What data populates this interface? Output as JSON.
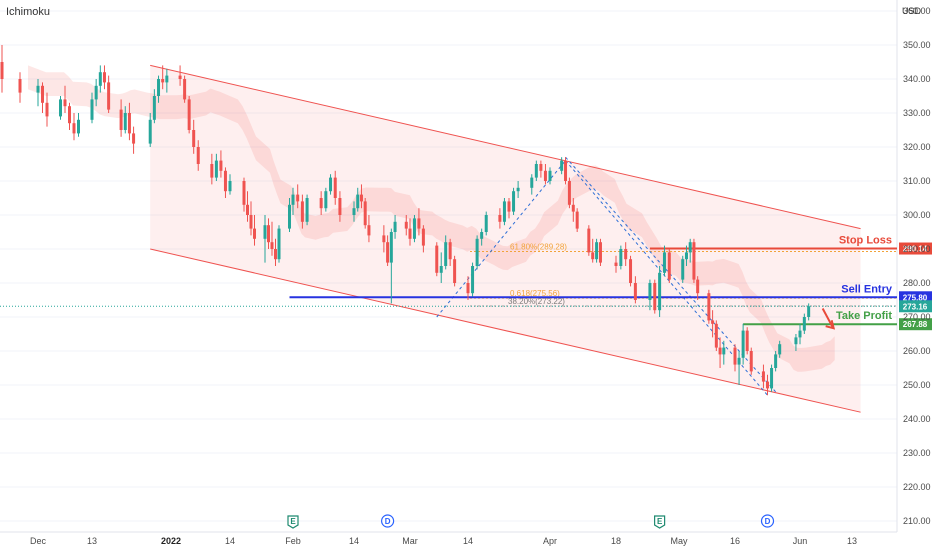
{
  "header": {
    "indicator": "Ichimoku",
    "currency": "USD"
  },
  "colors": {
    "up": "#26a69a",
    "down": "#ef5350",
    "channel": "#ef5350",
    "sell": "#2733e0",
    "stop": "#e84a3a",
    "take": "#43a047",
    "fib": "#f2a33a",
    "grid": "#f0f3fa"
  },
  "chart_data": {
    "type": "candlestick",
    "title": "",
    "ylim": [
      205,
      363
    ],
    "y_ticks": [
      210,
      220,
      230,
      240,
      250,
      260,
      270,
      280,
      290,
      300,
      310,
      320,
      330,
      340,
      350,
      360
    ],
    "x_labels": [
      "Dec",
      "13",
      "2022",
      "14",
      "Feb",
      "14",
      "Mar",
      "14",
      "Apr",
      "18",
      "May",
      "16",
      "Jun",
      "13"
    ],
    "x_label_bold": [
      "2022"
    ],
    "annotations": [
      {
        "label": "Stop Loss",
        "value": 290.14,
        "tag": "290.14"
      },
      {
        "label": "Sell Entry",
        "value": 275.8,
        "tag": "275.80"
      },
      {
        "label": "Take Profit",
        "value": 267.88,
        "tag": "267.88"
      }
    ],
    "current_price": {
      "value": 273.16,
      "tag": "273.16"
    },
    "fib_levels": [
      {
        "label": "61.80%(289.28)",
        "value": 289.28
      },
      {
        "label": "0.618(275.56)",
        "value": 275.56
      },
      {
        "label": "38.20%(273.22)",
        "value": 273.22
      }
    ],
    "events": [
      {
        "label": "E",
        "date": "Feb 1"
      },
      {
        "label": "D",
        "date": "Feb 23"
      },
      {
        "label": "E",
        "date": "Apr 27"
      },
      {
        "label": "D",
        "date": "May 24"
      }
    ],
    "channel": {
      "upper": [
        [
          "Dec 27",
          344
        ],
        [
          "Jun 15",
          296
        ]
      ],
      "lower": [
        [
          "Dec 27",
          290
        ],
        [
          "Jun 15",
          242
        ]
      ]
    },
    "candles": [
      {
        "d": "Nov 29",
        "o": 345,
        "h": 350,
        "l": 336,
        "c": 340
      },
      {
        "d": "Nov 30",
        "o": 340,
        "h": 342,
        "l": 333,
        "c": 336
      },
      {
        "d": "Dec 1",
        "o": 336,
        "h": 340,
        "l": 332,
        "c": 338
      },
      {
        "d": "Dec 2",
        "o": 338,
        "h": 339,
        "l": 330,
        "c": 333
      },
      {
        "d": "Dec 3",
        "o": 333,
        "h": 336,
        "l": 326,
        "c": 329
      },
      {
        "d": "Dec 6",
        "o": 329,
        "h": 335,
        "l": 328,
        "c": 334
      },
      {
        "d": "Dec 7",
        "o": 334,
        "h": 338,
        "l": 330,
        "c": 332
      },
      {
        "d": "Dec 8",
        "o": 332,
        "h": 333,
        "l": 325,
        "c": 327
      },
      {
        "d": "Dec 9",
        "o": 327,
        "h": 330,
        "l": 322,
        "c": 324
      },
      {
        "d": "Dec 10",
        "o": 324,
        "h": 330,
        "l": 323,
        "c": 328
      },
      {
        "d": "Dec 13",
        "o": 328,
        "h": 336,
        "l": 327,
        "c": 334
      },
      {
        "d": "Dec 14",
        "o": 334,
        "h": 340,
        "l": 332,
        "c": 338
      },
      {
        "d": "Dec 15",
        "o": 338,
        "h": 344,
        "l": 336,
        "c": 342
      },
      {
        "d": "Dec 16",
        "o": 342,
        "h": 344,
        "l": 337,
        "c": 339
      },
      {
        "d": "Dec 17",
        "o": 339,
        "h": 341,
        "l": 330,
        "c": 331
      },
      {
        "d": "Dec 20",
        "o": 331,
        "h": 334,
        "l": 323,
        "c": 325
      },
      {
        "d": "Dec 21",
        "o": 325,
        "h": 332,
        "l": 324,
        "c": 330
      },
      {
        "d": "Dec 22",
        "o": 330,
        "h": 333,
        "l": 322,
        "c": 324
      },
      {
        "d": "Dec 23",
        "o": 324,
        "h": 326,
        "l": 318,
        "c": 321
      },
      {
        "d": "Dec 27",
        "o": 321,
        "h": 330,
        "l": 320,
        "c": 328
      },
      {
        "d": "Dec 28",
        "o": 328,
        "h": 337,
        "l": 327,
        "c": 335
      },
      {
        "d": "Dec 29",
        "o": 335,
        "h": 341,
        "l": 333,
        "c": 340
      },
      {
        "d": "Dec 30",
        "o": 340,
        "h": 344,
        "l": 337,
        "c": 339
      },
      {
        "d": "Dec 31",
        "o": 339,
        "h": 343,
        "l": 336,
        "c": 341
      },
      {
        "d": "Jan 3",
        "o": 341,
        "h": 344,
        "l": 338,
        "c": 340
      },
      {
        "d": "Jan 4",
        "o": 340,
        "h": 341,
        "l": 333,
        "c": 334
      },
      {
        "d": "Jan 5",
        "o": 334,
        "h": 335,
        "l": 324,
        "c": 325
      },
      {
        "d": "Jan 6",
        "o": 325,
        "h": 328,
        "l": 318,
        "c": 320
      },
      {
        "d": "Jan 7",
        "o": 320,
        "h": 322,
        "l": 313,
        "c": 315
      },
      {
        "d": "Jan 10",
        "o": 315,
        "h": 318,
        "l": 309,
        "c": 311
      },
      {
        "d": "Jan 11",
        "o": 311,
        "h": 318,
        "l": 310,
        "c": 316
      },
      {
        "d": "Jan 12",
        "o": 316,
        "h": 319,
        "l": 311,
        "c": 313
      },
      {
        "d": "Jan 13",
        "o": 313,
        "h": 314,
        "l": 305,
        "c": 307
      },
      {
        "d": "Jan 14",
        "o": 307,
        "h": 312,
        "l": 306,
        "c": 310
      },
      {
        "d": "Jan 18",
        "o": 310,
        "h": 311,
        "l": 301,
        "c": 303
      },
      {
        "d": "Jan 19",
        "o": 303,
        "h": 307,
        "l": 298,
        "c": 300
      },
      {
        "d": "Jan 20",
        "o": 300,
        "h": 304,
        "l": 294,
        "c": 296
      },
      {
        "d": "Jan 21",
        "o": 296,
        "h": 300,
        "l": 291,
        "c": 293
      },
      {
        "d": "Jan 24",
        "o": 293,
        "h": 300,
        "l": 286,
        "c": 297
      },
      {
        "d": "Jan 25",
        "o": 297,
        "h": 299,
        "l": 290,
        "c": 292
      },
      {
        "d": "Jan 26",
        "o": 292,
        "h": 298,
        "l": 288,
        "c": 290
      },
      {
        "d": "Jan 27",
        "o": 290,
        "h": 293,
        "l": 285,
        "c": 287
      },
      {
        "d": "Jan 28",
        "o": 287,
        "h": 297,
        "l": 286,
        "c": 296
      },
      {
        "d": "Jan 31",
        "o": 296,
        "h": 305,
        "l": 295,
        "c": 303
      },
      {
        "d": "Feb 1",
        "o": 303,
        "h": 308,
        "l": 300,
        "c": 306
      },
      {
        "d": "Feb 2",
        "o": 306,
        "h": 309,
        "l": 302,
        "c": 304
      },
      {
        "d": "Feb 3",
        "o": 304,
        "h": 306,
        "l": 296,
        "c": 298
      },
      {
        "d": "Feb 4",
        "o": 298,
        "h": 306,
        "l": 297,
        "c": 305
      },
      {
        "d": "Feb 7",
        "o": 305,
        "h": 307,
        "l": 300,
        "c": 302
      },
      {
        "d": "Feb 8",
        "o": 302,
        "h": 308,
        "l": 301,
        "c": 307
      },
      {
        "d": "Feb 9",
        "o": 307,
        "h": 312,
        "l": 306,
        "c": 311
      },
      {
        "d": "Feb 10",
        "o": 311,
        "h": 313,
        "l": 303,
        "c": 305
      },
      {
        "d": "Feb 11",
        "o": 305,
        "h": 307,
        "l": 298,
        "c": 300
      },
      {
        "d": "Feb 14",
        "o": 300,
        "h": 304,
        "l": 298,
        "c": 302
      },
      {
        "d": "Feb 15",
        "o": 302,
        "h": 308,
        "l": 301,
        "c": 306
      },
      {
        "d": "Feb 16",
        "o": 306,
        "h": 309,
        "l": 302,
        "c": 304
      },
      {
        "d": "Feb 17",
        "o": 304,
        "h": 305,
        "l": 296,
        "c": 297
      },
      {
        "d": "Feb 18",
        "o": 297,
        "h": 300,
        "l": 292,
        "c": 294
      },
      {
        "d": "Feb 22",
        "o": 294,
        "h": 297,
        "l": 289,
        "c": 292
      },
      {
        "d": "Feb 23",
        "o": 292,
        "h": 294,
        "l": 285,
        "c": 286
      },
      {
        "d": "Feb 24",
        "o": 286,
        "h": 296,
        "l": 274,
        "c": 295
      },
      {
        "d": "Feb 25",
        "o": 295,
        "h": 300,
        "l": 293,
        "c": 298
      },
      {
        "d": "Feb 28",
        "o": 298,
        "h": 300,
        "l": 294,
        "c": 296
      },
      {
        "d": "Mar 1",
        "o": 296,
        "h": 299,
        "l": 291,
        "c": 293
      },
      {
        "d": "Mar 2",
        "o": 293,
        "h": 300,
        "l": 292,
        "c": 299
      },
      {
        "d": "Mar 3",
        "o": 299,
        "h": 302,
        "l": 294,
        "c": 296
      },
      {
        "d": "Mar 4",
        "o": 296,
        "h": 297,
        "l": 289,
        "c": 291
      },
      {
        "d": "Mar 7",
        "o": 291,
        "h": 292,
        "l": 282,
        "c": 283
      },
      {
        "d": "Mar 8",
        "o": 283,
        "h": 289,
        "l": 280,
        "c": 285
      },
      {
        "d": "Mar 9",
        "o": 285,
        "h": 294,
        "l": 284,
        "c": 292
      },
      {
        "d": "Mar 10",
        "o": 292,
        "h": 293,
        "l": 285,
        "c": 287
      },
      {
        "d": "Mar 11",
        "o": 287,
        "h": 288,
        "l": 279,
        "c": 280
      },
      {
        "d": "Mar 14",
        "o": 280,
        "h": 282,
        "l": 275,
        "c": 277
      },
      {
        "d": "Mar 15",
        "o": 277,
        "h": 286,
        "l": 276,
        "c": 285
      },
      {
        "d": "Mar 16",
        "o": 285,
        "h": 294,
        "l": 284,
        "c": 293
      },
      {
        "d": "Mar 17",
        "o": 293,
        "h": 296,
        "l": 291,
        "c": 295
      },
      {
        "d": "Mar 18",
        "o": 295,
        "h": 301,
        "l": 294,
        "c": 300
      },
      {
        "d": "Mar 21",
        "o": 300,
        "h": 302,
        "l": 296,
        "c": 298
      },
      {
        "d": "Mar 22",
        "o": 298,
        "h": 305,
        "l": 297,
        "c": 304
      },
      {
        "d": "Mar 23",
        "o": 304,
        "h": 305,
        "l": 299,
        "c": 301
      },
      {
        "d": "Mar 24",
        "o": 301,
        "h": 308,
        "l": 300,
        "c": 307
      },
      {
        "d": "Mar 25",
        "o": 307,
        "h": 310,
        "l": 305,
        "c": 308
      },
      {
        "d": "Mar 28",
        "o": 308,
        "h": 312,
        "l": 306,
        "c": 311
      },
      {
        "d": "Mar 29",
        "o": 311,
        "h": 316,
        "l": 310,
        "c": 315
      },
      {
        "d": "Mar 30",
        "o": 315,
        "h": 316,
        "l": 311,
        "c": 313
      },
      {
        "d": "Mar 31",
        "o": 313,
        "h": 315,
        "l": 309,
        "c": 310
      },
      {
        "d": "Apr 1",
        "o": 310,
        "h": 314,
        "l": 309,
        "c": 313
      },
      {
        "d": "Apr 4",
        "o": 313,
        "h": 317,
        "l": 312,
        "c": 316
      },
      {
        "d": "Apr 5",
        "o": 316,
        "h": 317,
        "l": 309,
        "c": 310
      },
      {
        "d": "Apr 6",
        "o": 310,
        "h": 311,
        "l": 302,
        "c": 303
      },
      {
        "d": "Apr 7",
        "o": 303,
        "h": 305,
        "l": 298,
        "c": 301
      },
      {
        "d": "Apr 8",
        "o": 301,
        "h": 302,
        "l": 295,
        "c": 296
      },
      {
        "d": "Apr 11",
        "o": 296,
        "h": 297,
        "l": 288,
        "c": 289
      },
      {
        "d": "Apr 12",
        "o": 289,
        "h": 293,
        "l": 286,
        "c": 287
      },
      {
        "d": "Apr 13",
        "o": 287,
        "h": 293,
        "l": 286,
        "c": 292
      },
      {
        "d": "Apr 14",
        "o": 292,
        "h": 293,
        "l": 285,
        "c": 286
      },
      {
        "d": "Apr 18",
        "o": 286,
        "h": 288,
        "l": 283,
        "c": 285
      },
      {
        "d": "Apr 19",
        "o": 285,
        "h": 291,
        "l": 284,
        "c": 290
      },
      {
        "d": "Apr 20",
        "o": 290,
        "h": 292,
        "l": 285,
        "c": 287
      },
      {
        "d": "Apr 21",
        "o": 287,
        "h": 288,
        "l": 279,
        "c": 280
      },
      {
        "d": "Apr 22",
        "o": 280,
        "h": 282,
        "l": 274,
        "c": 275
      },
      {
        "d": "Apr 25",
        "o": 275,
        "h": 281,
        "l": 272,
        "c": 280
      },
      {
        "d": "Apr 26",
        "o": 280,
        "h": 281,
        "l": 271,
        "c": 272
      },
      {
        "d": "Apr 27",
        "o": 272,
        "h": 285,
        "l": 270,
        "c": 283
      },
      {
        "d": "Apr 28",
        "o": 283,
        "h": 291,
        "l": 282,
        "c": 289
      },
      {
        "d": "Apr 29",
        "o": 289,
        "h": 290,
        "l": 280,
        "c": 281
      },
      {
        "d": "May 2",
        "o": 281,
        "h": 288,
        "l": 280,
        "c": 287
      },
      {
        "d": "May 3",
        "o": 287,
        "h": 291,
        "l": 285,
        "c": 289
      },
      {
        "d": "May 4",
        "o": 289,
        "h": 293,
        "l": 286,
        "c": 292
      },
      {
        "d": "May 5",
        "o": 292,
        "h": 293,
        "l": 280,
        "c": 281
      },
      {
        "d": "May 6",
        "o": 281,
        "h": 282,
        "l": 275,
        "c": 277
      },
      {
        "d": "May 9",
        "o": 277,
        "h": 278,
        "l": 268,
        "c": 269
      },
      {
        "d": "May 10",
        "o": 269,
        "h": 272,
        "l": 264,
        "c": 268
      },
      {
        "d": "May 11",
        "o": 268,
        "h": 269,
        "l": 260,
        "c": 261
      },
      {
        "d": "May 12",
        "o": 261,
        "h": 264,
        "l": 255,
        "c": 259
      },
      {
        "d": "May 13",
        "o": 259,
        "h": 263,
        "l": 256,
        "c": 261
      },
      {
        "d": "May 16",
        "o": 261,
        "h": 262,
        "l": 254,
        "c": 256
      },
      {
        "d": "May 17",
        "o": 256,
        "h": 260,
        "l": 250,
        "c": 258
      },
      {
        "d": "May 18",
        "o": 258,
        "h": 268,
        "l": 256,
        "c": 266
      },
      {
        "d": "May 19",
        "o": 266,
        "h": 267,
        "l": 259,
        "c": 260
      },
      {
        "d": "May 20",
        "o": 260,
        "h": 261,
        "l": 253,
        "c": 254
      },
      {
        "d": "May 23",
        "o": 254,
        "h": 256,
        "l": 249,
        "c": 251
      },
      {
        "d": "May 24",
        "o": 251,
        "h": 253,
        "l": 247,
        "c": 249
      },
      {
        "d": "May 25",
        "o": 249,
        "h": 256,
        "l": 248,
        "c": 255
      },
      {
        "d": "May 26",
        "o": 255,
        "h": 260,
        "l": 254,
        "c": 259
      },
      {
        "d": "May 27",
        "o": 259,
        "h": 263,
        "l": 258,
        "c": 262
      },
      {
        "d": "May 31",
        "o": 262,
        "h": 265,
        "l": 260,
        "c": 264
      },
      {
        "d": "Jun 1",
        "o": 264,
        "h": 268,
        "l": 262,
        "c": 266
      },
      {
        "d": "Jun 2",
        "o": 266,
        "h": 271,
        "l": 265,
        "c": 270
      },
      {
        "d": "Jun 3",
        "o": 270,
        "h": 274,
        "l": 269,
        "c": 273.16
      }
    ]
  }
}
